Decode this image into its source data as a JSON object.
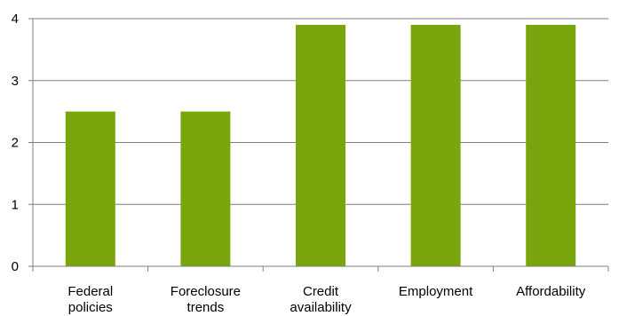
{
  "chart_data": {
    "type": "bar",
    "categories": [
      [
        "Federal",
        "policies"
      ],
      [
        "Foreclosure",
        "trends"
      ],
      [
        "Credit",
        "availability"
      ],
      [
        "Employment"
      ],
      [
        "Affordability"
      ]
    ],
    "values": [
      2.5,
      2.5,
      3.9,
      3.9,
      3.9
    ],
    "ylim": [
      0,
      4
    ],
    "yticks": [
      "0",
      "1",
      "2",
      "3",
      "4"
    ],
    "title": "",
    "xlabel": "",
    "ylabel": "",
    "grid": true,
    "legend": "none",
    "bar_color": "#7aa60d",
    "grid_color": "#7f7f7f",
    "axis_color": "#7f7f7f"
  }
}
